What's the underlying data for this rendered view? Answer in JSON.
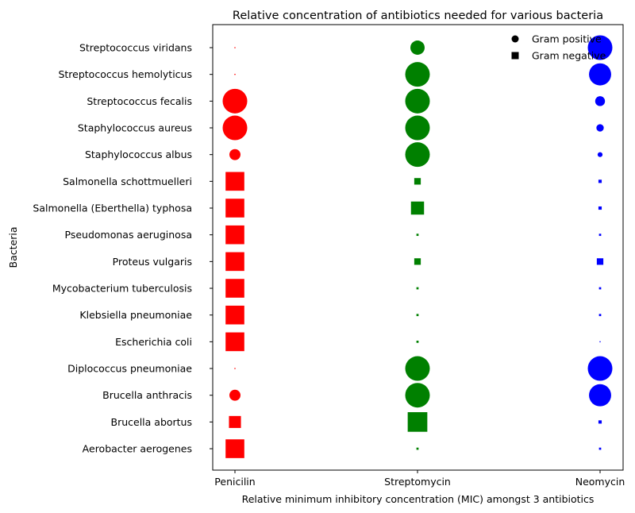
{
  "chart_data": {
    "type": "scatter",
    "title": "Relative concentration of antibiotics needed for various bacteria",
    "xlabel": "Relative minimum inhibitory concentration (MIC) amongst 3 antibiotics",
    "ylabel": "Bacteria",
    "grid": false,
    "legend_position": "top-right",
    "antibiotics": [
      "Penicilin",
      "Streptomycin",
      "Neomycin"
    ],
    "colors": [
      "#ff0000",
      "#008000",
      "#0000ff"
    ],
    "bacteria": [
      "Aerobacter aerogenes",
      "Brucella abortus",
      "Brucella anthracis",
      "Diplococcus pneumoniae",
      "Escherichia coli",
      "Klebsiella pneumoniae",
      "Mycobacterium tuberculosis",
      "Proteus vulgaris",
      "Pseudomonas aeruginosa",
      "Salmonella (Eberthella) typhosa",
      "Salmonella schottmuelleri",
      "Staphylococcus albus",
      "Staphylococcus aureus",
      "Streptococcus fecalis",
      "Streptococcus hemolyticus",
      "Streptococcus viridans"
    ],
    "gram": [
      "negative",
      "negative",
      "positive",
      "positive",
      "negative",
      "negative",
      "negative",
      "negative",
      "negative",
      "negative",
      "negative",
      "positive",
      "positive",
      "positive",
      "positive",
      "positive"
    ],
    "legend": [
      {
        "label": "Gram positive",
        "marker": "circle"
      },
      {
        "label": "Gram negative",
        "marker": "square"
      }
    ],
    "series": [
      {
        "values": [
          0.86,
          0.55,
          0.45,
          0.05,
          0.86,
          0.86,
          0.86,
          0.86,
          0.86,
          0.86,
          0.86,
          0.45,
          1.0,
          1.0,
          0.05,
          0.05
        ]
      },
      {
        "values": [
          0.1,
          0.9,
          1.0,
          1.0,
          0.1,
          0.1,
          0.1,
          0.3,
          0.1,
          0.6,
          0.3,
          1.0,
          1.0,
          1.0,
          1.0,
          0.58
        ]
      },
      {
        "values": [
          0.1,
          0.15,
          0.9,
          1.0,
          0.05,
          0.1,
          0.1,
          0.3,
          0.1,
          0.15,
          0.15,
          0.2,
          0.3,
          0.4,
          0.9,
          1.0
        ]
      }
    ]
  }
}
